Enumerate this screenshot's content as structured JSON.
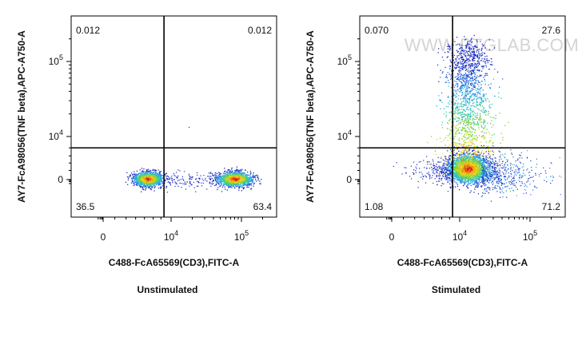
{
  "chart_data": [
    {
      "type": "scatter",
      "caption": "Unstimulated",
      "xlabel": "C488-FcA65569(CD3),FITC-A",
      "ylabel": "AY7-FcA98056(TNF beta),APC-A750-A",
      "x_ticks": [
        {
          "value": 0,
          "label": "0"
        },
        {
          "value": 10000,
          "base": "10",
          "exp": "4"
        },
        {
          "value": 100000,
          "base": "10",
          "exp": "5"
        }
      ],
      "y_ticks": [
        {
          "value": 0,
          "label": "0"
        },
        {
          "value": 10000,
          "base": "10",
          "exp": "4"
        },
        {
          "value": 100000,
          "base": "10",
          "exp": "5"
        }
      ],
      "gate_x": 7000,
      "gate_y": 4000,
      "quadrants": {
        "top_left": "0.012",
        "top_right": "0.012",
        "bottom_left": "36.5",
        "bottom_right": "63.4"
      },
      "populations": [
        {
          "name": "CD3 negative cluster",
          "x_center": 3000,
          "y_center": 0
        },
        {
          "name": "CD3 positive cluster",
          "x_center": 80000,
          "y_center": 0
        }
      ]
    },
    {
      "type": "scatter",
      "caption": "Stimulated",
      "watermark": "WWW.PTGLAB.COM",
      "xlabel": "C488-FcA65569(CD3),FITC-A",
      "ylabel": "AY7-FcA98056(TNF beta),APC-A750-A",
      "x_ticks": [
        {
          "value": 0,
          "label": "0"
        },
        {
          "value": 10000,
          "base": "10",
          "exp": "4"
        },
        {
          "value": 100000,
          "base": "10",
          "exp": "5"
        }
      ],
      "y_ticks": [
        {
          "value": 0,
          "label": "0"
        },
        {
          "value": 10000,
          "base": "10",
          "exp": "4"
        },
        {
          "value": 100000,
          "base": "10",
          "exp": "5"
        }
      ],
      "gate_x": 7000,
      "gate_y": 4000,
      "quadrants": {
        "top_left": "0.070",
        "top_right": "27.6",
        "bottom_left": "1.08",
        "bottom_right": "71.2"
      },
      "populations": [
        {
          "name": "CD3 positive TNF-beta negative cluster",
          "x_center": 13000,
          "y_center": 0
        },
        {
          "name": "CD3 positive TNF-beta positive spread",
          "x_center": 15000,
          "y_center": 20000
        }
      ]
    }
  ]
}
